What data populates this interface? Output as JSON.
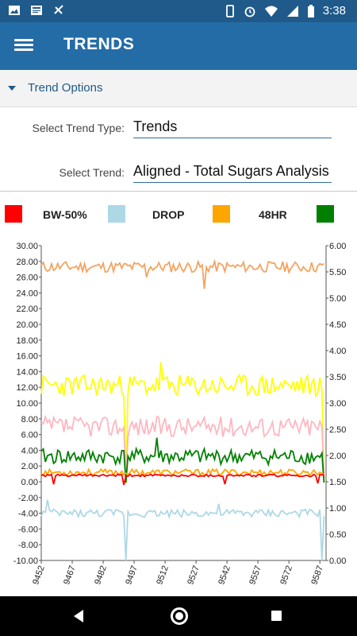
{
  "status_bar": {
    "time": "3:38",
    "icons_left": [
      "image-icon",
      "news-icon",
      "no-notification-icon"
    ],
    "icons_right": [
      "vibrate-icon",
      "alarm-icon",
      "wifi-icon",
      "signal-icon",
      "battery-icon"
    ]
  },
  "app_bar": {
    "title": "TRENDS",
    "menu_icon": "hamburger-menu-icon"
  },
  "options": {
    "header": "Trend Options",
    "type_label": "Select Trend Type:",
    "type_value": "Trends",
    "trend_label": "Select Trend:",
    "trend_value": "Aligned - Total Sugars Analysis"
  },
  "legend": [
    {
      "name": "BW-50%",
      "color": "#ff0000"
    },
    {
      "name": "DROP",
      "color": "#add8e6"
    },
    {
      "name": "48HR",
      "color": "#ffa500"
    },
    {
      "name": "",
      "color": "#008000"
    }
  ],
  "chart_data": {
    "type": "line",
    "x_ticks": [
      "9452",
      "9467",
      "9482",
      "9497",
      "9512",
      "9527",
      "9542",
      "9557",
      "9572",
      "9587"
    ],
    "xlim": [
      9452,
      9590
    ],
    "y_left": {
      "lim": [
        -10,
        30
      ],
      "ticks": [
        "30.00",
        "28.00",
        "26.00",
        "24.00",
        "22.00",
        "20.00",
        "18.00",
        "16.00",
        "14.00",
        "12.00",
        "10.00",
        "8.00",
        "6.00",
        "4.00",
        "2.00",
        "0.00",
        "-2.00",
        "-4.00",
        "-6.00",
        "-8.00",
        "-10.00"
      ]
    },
    "y_right": {
      "lim": [
        0,
        6
      ],
      "ticks": [
        "6.00",
        "5.50",
        "5.00",
        "4.50",
        "4.00",
        "3.50",
        "3.00",
        "2.50",
        "2.00",
        "1.50",
        "1.00",
        "0.50",
        "0.00"
      ]
    },
    "series": [
      {
        "color": "#f4a460",
        "axis": "left",
        "base": 27.3,
        "amp": 0.7,
        "seed": 11,
        "spikes": [
          [
            9531,
            24.5
          ],
          [
            9503,
            26.0
          ]
        ]
      },
      {
        "color": "#ffff00",
        "axis": "left",
        "base": 12.2,
        "amp": 1.4,
        "seed": 23,
        "spikes": [
          [
            9493,
            -0.2
          ],
          [
            9510,
            15.2
          ],
          [
            9589,
            0.0
          ]
        ]
      },
      {
        "color": "#ffb6c1",
        "axis": "left",
        "base": 7.0,
        "amp": 1.3,
        "seed": 37,
        "spikes": [
          [
            9493,
            0.5
          ],
          [
            9589,
            0.5
          ]
        ]
      },
      {
        "color": "#008000",
        "axis": "left",
        "base": 3.2,
        "amp": 1.0,
        "seed": 41,
        "spikes": [
          [
            9493,
            -0.1
          ],
          [
            9508,
            5.6
          ],
          [
            9589,
            -0.1
          ]
        ]
      },
      {
        "color": "#ffa500",
        "axis": "left",
        "base": 1.2,
        "amp": 0.4,
        "seed": 53,
        "spikes": []
      },
      {
        "color": "#ff0000",
        "axis": "left",
        "base": 0.8,
        "amp": 0.15,
        "seed": 61,
        "spikes": [
          [
            9458,
            -0.3
          ],
          [
            9492,
            -0.4
          ],
          [
            9541,
            -0.3
          ],
          [
            9586,
            -0.2
          ]
        ]
      },
      {
        "color": "#add8e6",
        "axis": "left",
        "base": -4.0,
        "amp": 0.5,
        "seed": 73,
        "spikes": [
          [
            9455,
            -2.3
          ],
          [
            9493,
            -10.0
          ],
          [
            9538,
            -2.8
          ],
          [
            9588,
            -10.0
          ]
        ]
      }
    ],
    "grid": false
  }
}
